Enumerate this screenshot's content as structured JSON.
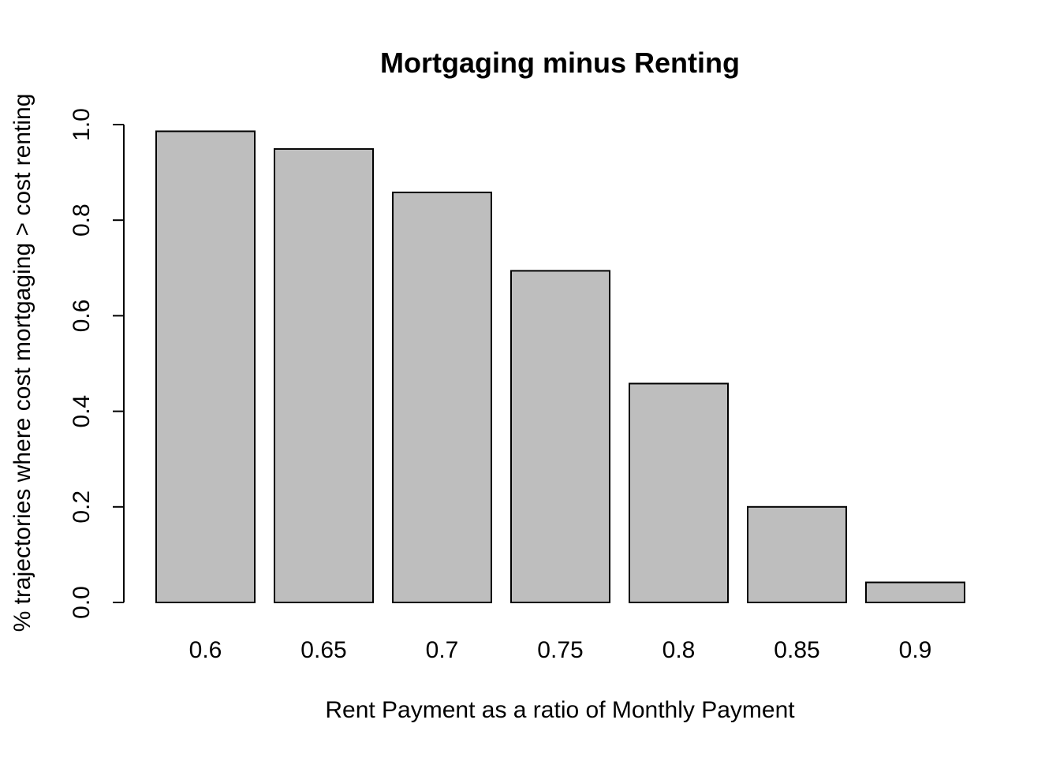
{
  "chart_data": {
    "type": "bar",
    "title": "Mortgaging minus Renting",
    "xlabel": "Rent Payment as a ratio of Monthly Payment",
    "ylabel": "% trajectories where cost mortgaging > cost renting",
    "categories": [
      "0.6",
      "0.65",
      "0.7",
      "0.75",
      "0.8",
      "0.85",
      "0.9"
    ],
    "values": [
      0.986,
      0.949,
      0.858,
      0.694,
      0.458,
      0.2,
      0.042
    ],
    "ylim": [
      0,
      1
    ],
    "yticks": [
      "0.0",
      "0.2",
      "0.4",
      "0.6",
      "0.8",
      "1.0"
    ],
    "bar_color": "#bebebe",
    "grid": false,
    "legend": "none"
  }
}
